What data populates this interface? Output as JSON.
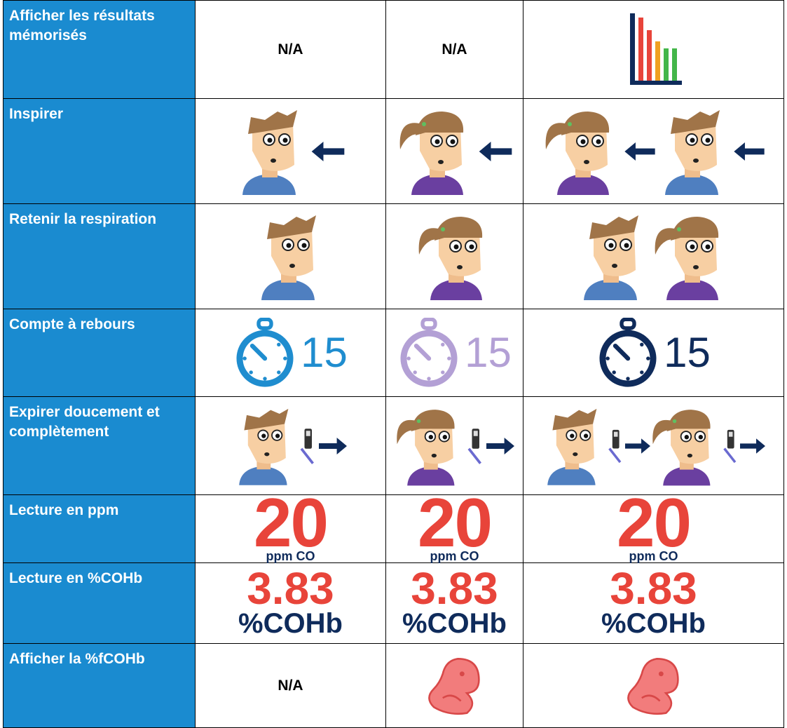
{
  "table": {
    "rows": [
      {
        "label": "Afficher les résultats mémorisés",
        "cells": [
          "N/A",
          "N/A"
        ]
      },
      {
        "label": "Inspirer"
      },
      {
        "label": "Retenir la respiration"
      },
      {
        "label": "Compte à rebours",
        "cells": [
          "15",
          "15",
          "15"
        ]
      },
      {
        "label": "Expirer doucement et complètement"
      },
      {
        "label": "Lecture en ppm",
        "cells": [
          {
            "number": "20",
            "unit": "ppm CO"
          },
          {
            "number": "20",
            "unit": "ppm CO"
          },
          {
            "number": "20",
            "unit": "ppm CO"
          }
        ]
      },
      {
        "label": "Lecture en %COHb",
        "cells": [
          {
            "number": "3.83",
            "unit": "%COHb"
          },
          {
            "number": "3.83",
            "unit": "%COHb"
          },
          {
            "number": "3.83",
            "unit": "%COHb"
          }
        ]
      },
      {
        "label": "Afficher la %fCOHb",
        "cells": [
          "N/A"
        ]
      }
    ]
  }
}
